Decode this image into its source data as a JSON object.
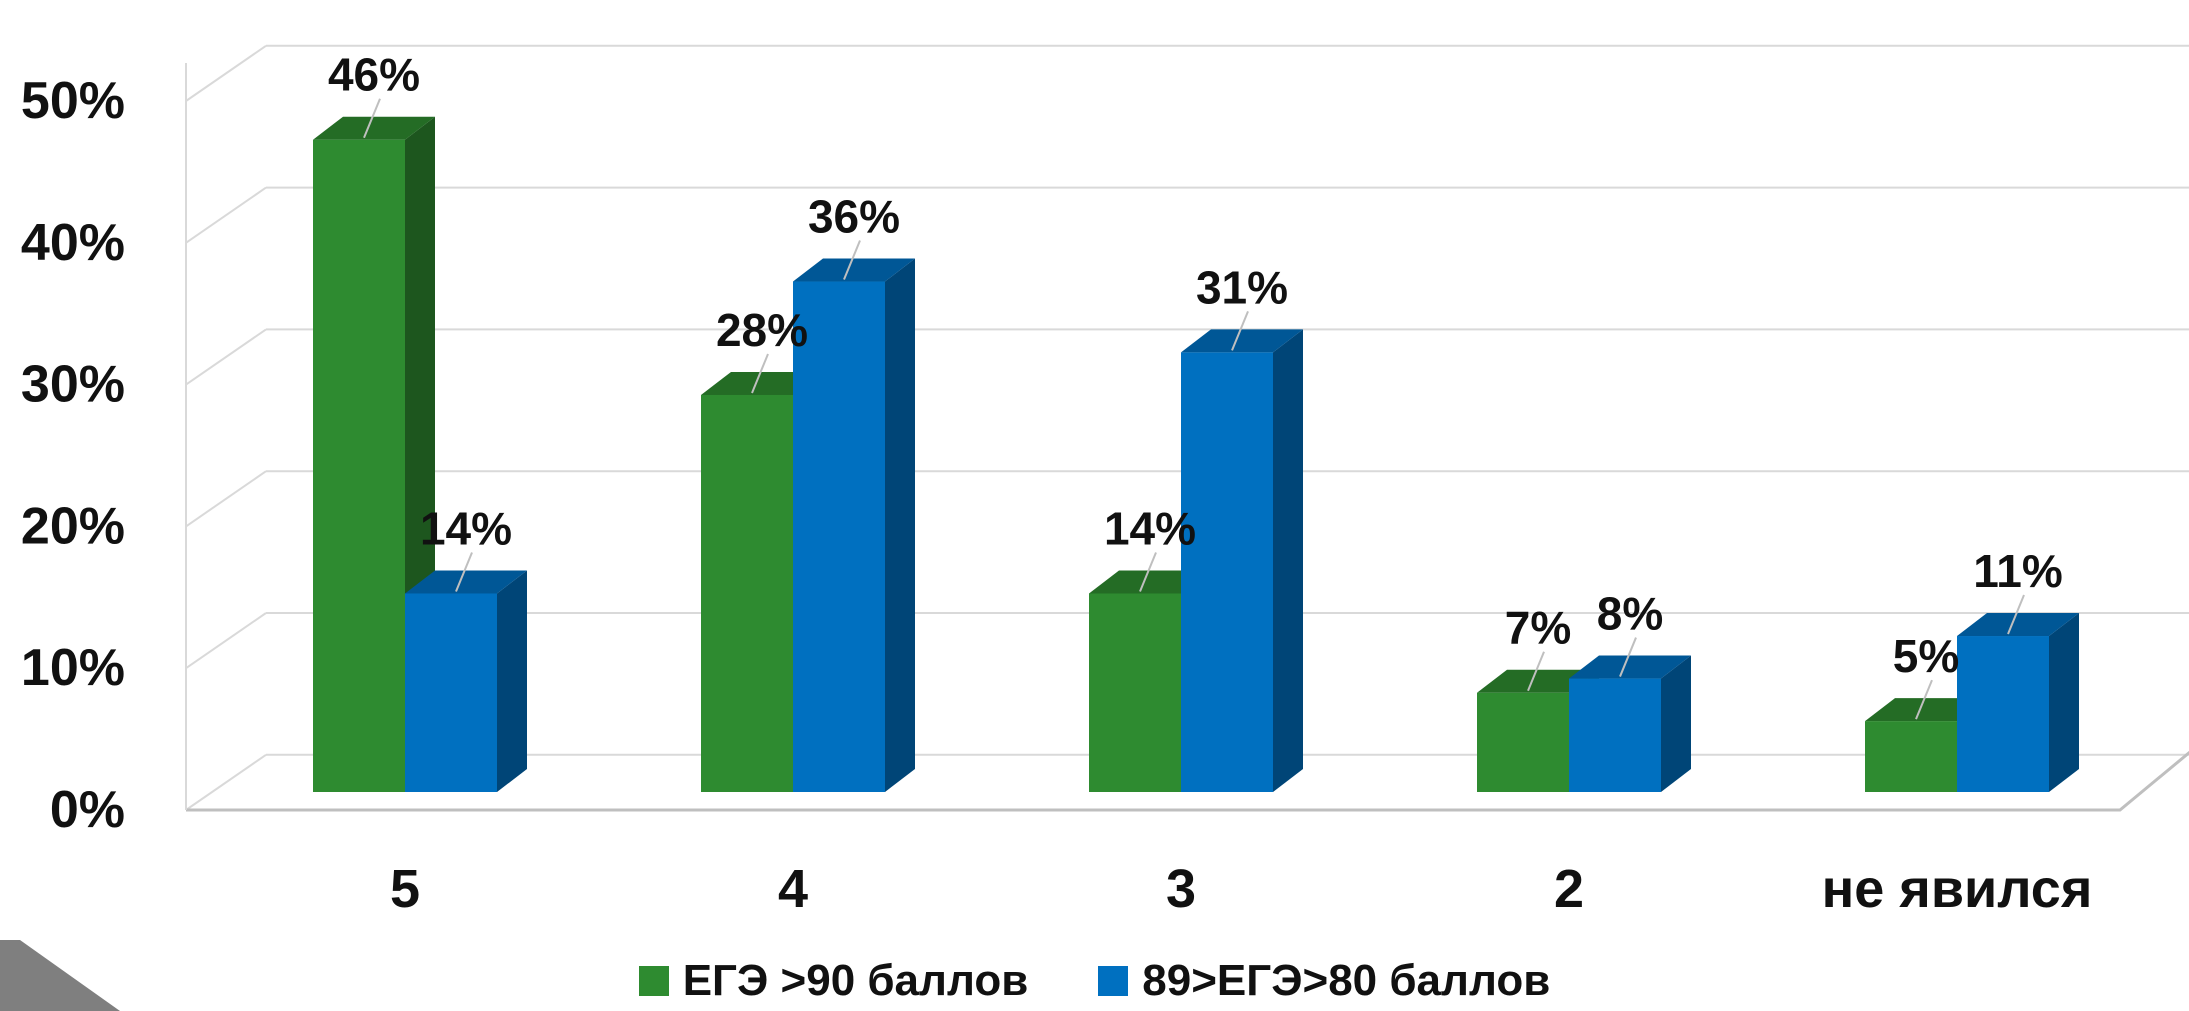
{
  "chart_data": {
    "type": "bar",
    "categories": [
      "5",
      "4",
      "3",
      "2",
      "не явился"
    ],
    "series": [
      {
        "name": "ЕГЭ >90 баллов",
        "values": [
          46,
          28,
          14,
          7,
          5
        ],
        "labels": [
          "46%",
          "28%",
          "14%",
          "7%",
          "5%"
        ],
        "color": "#2E8B30"
      },
      {
        "name": "89>ЕГЭ>80 баллов",
        "values": [
          14,
          36,
          31,
          8,
          11
        ],
        "labels": [
          "14%",
          "36%",
          "31%",
          "8%",
          "11%"
        ],
        "color": "#0070C0"
      }
    ],
    "y_ticks": [
      "0%",
      "10%",
      "20%",
      "30%",
      "40%",
      "50%"
    ],
    "ylim": [
      0,
      50
    ],
    "grid": true,
    "style": "3d-clustered-column",
    "legend_position": "bottom",
    "title": "",
    "xlabel": "",
    "ylabel": ""
  }
}
